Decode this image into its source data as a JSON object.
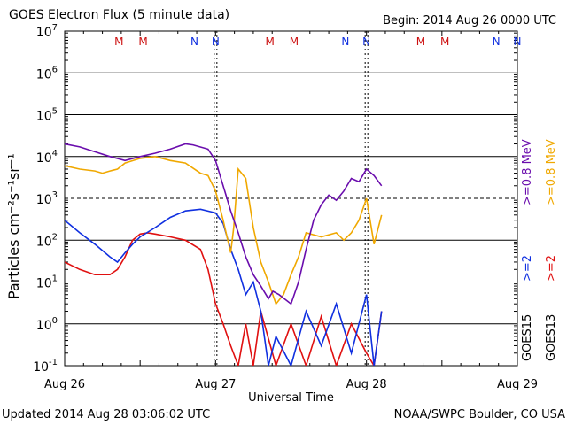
{
  "header": {
    "title": "GOES Electron Flux (5 minute data)",
    "begin": "Begin: 2014 Aug 26 0000 UTC"
  },
  "footer": {
    "updated": "Updated 2014 Aug 28 03:06:02 UTC",
    "credit": "NOAA/SWPC Boulder, CO USA"
  },
  "colors": {
    "goes15_08": "#6a0dad",
    "goes13_08": "#f0a800",
    "goes15_2": "#1030e0",
    "goes13_2": "#e01010",
    "m_marker": "#cc1010",
    "n_marker": "#1030e0"
  },
  "legend": {
    "goes15_08": ">=0.8 MeV",
    "goes13_08": ">=0.8 MeV",
    "goes15_2": ">=2",
    "goes13_2": ">=2",
    "goes15": "GOES15",
    "goes13": "GOES13"
  },
  "chart_data": {
    "type": "line",
    "title": "GOES Electron Flux (5 minute data)",
    "xlabel": "Universal Time",
    "ylabel": "Particles cm⁻²s⁻¹sr⁻¹",
    "xlim": [
      0,
      3
    ],
    "ylim_log10": [
      -1,
      7
    ],
    "x_ticks": [
      "Aug 26",
      "Aug 27",
      "Aug 28",
      "Aug 29"
    ],
    "y_ticks": [
      {
        "base": "10",
        "exp": "-1"
      },
      {
        "base": "10",
        "exp": "0"
      },
      {
        "base": "10",
        "exp": "1"
      },
      {
        "base": "10",
        "exp": "2"
      },
      {
        "base": "10",
        "exp": "3"
      },
      {
        "base": "10",
        "exp": "4"
      },
      {
        "base": "10",
        "exp": "5"
      },
      {
        "base": "10",
        "exp": "6"
      },
      {
        "base": "10",
        "exp": "7"
      }
    ],
    "alert_threshold": 1000,
    "day_markers": [
      {
        "day": 0,
        "labels": [
          "M",
          "M",
          "N",
          "N"
        ]
      },
      {
        "day": 1,
        "labels": [
          "M",
          "M",
          "N",
          "N"
        ]
      },
      {
        "day": 2,
        "labels": [
          "M",
          "M",
          "N",
          "N"
        ]
      }
    ],
    "marker_offsets_days": [
      0.36,
      0.52,
      0.86,
      1.0
    ],
    "series": [
      {
        "name": "GOES15 >=0.8 MeV",
        "x": [
          0,
          0.1,
          0.2,
          0.3,
          0.4,
          0.5,
          0.6,
          0.7,
          0.8,
          0.85,
          0.95,
          1.0,
          1.05,
          1.1,
          1.15,
          1.2,
          1.25,
          1.3,
          1.35,
          1.38,
          1.42,
          1.5,
          1.55,
          1.6,
          1.65,
          1.7,
          1.75,
          1.8,
          1.85,
          1.9,
          1.95,
          2.0,
          2.05,
          2.1
        ],
        "y": [
          20000,
          17000,
          13000,
          10000,
          8000,
          10000,
          12000,
          15000,
          20000,
          19000,
          15000,
          8000,
          2000,
          500,
          150,
          40,
          15,
          8,
          4,
          6,
          5,
          3,
          10,
          60,
          300,
          700,
          1200,
          900,
          1500,
          3000,
          2500,
          5000,
          3500,
          2000
        ]
      },
      {
        "name": "GOES13 >=0.8 MeV",
        "x": [
          0,
          0.1,
          0.2,
          0.25,
          0.3,
          0.35,
          0.4,
          0.5,
          0.6,
          0.7,
          0.8,
          0.9,
          0.95,
          1.0,
          1.05,
          1.1,
          1.12,
          1.15,
          1.2,
          1.25,
          1.3,
          1.35,
          1.4,
          1.45,
          1.5,
          1.55,
          1.6,
          1.7,
          1.8,
          1.85,
          1.9,
          1.95,
          2.0,
          2.05,
          2.1
        ],
        "y": [
          6000,
          5000,
          4500,
          4000,
          4500,
          5000,
          7000,
          9000,
          10000,
          8000,
          7000,
          4000,
          3500,
          1500,
          300,
          50,
          200,
          5000,
          3000,
          200,
          30,
          10,
          3,
          5,
          15,
          40,
          150,
          120,
          150,
          100,
          150,
          300,
          1000,
          80,
          400
        ]
      },
      {
        "name": "GOES15 >=2 MeV",
        "x": [
          0,
          0.1,
          0.2,
          0.3,
          0.35,
          0.4,
          0.45,
          0.5,
          0.6,
          0.7,
          0.8,
          0.9,
          1.0,
          1.05,
          1.1,
          1.15,
          1.2,
          1.25,
          1.3,
          1.35,
          1.4,
          1.5,
          1.6,
          1.7,
          1.8,
          1.9,
          2.0,
          2.05,
          2.1
        ],
        "y": [
          300,
          150,
          80,
          40,
          30,
          50,
          80,
          120,
          200,
          350,
          500,
          550,
          450,
          250,
          60,
          20,
          5,
          10,
          2,
          0.1,
          0.5,
          0.1,
          2,
          0.3,
          3,
          0.2,
          5,
          0.1,
          2
        ]
      },
      {
        "name": "GOES13 >=2 MeV",
        "x": [
          0,
          0.1,
          0.2,
          0.3,
          0.35,
          0.4,
          0.45,
          0.5,
          0.55,
          0.6,
          0.7,
          0.8,
          0.9,
          0.95,
          1.0,
          1.05,
          1.1,
          1.15,
          1.2,
          1.25,
          1.3,
          1.4,
          1.5,
          1.6,
          1.7,
          1.8,
          1.9,
          2.0,
          2.05,
          2.1
        ],
        "y": [
          30,
          20,
          15,
          15,
          20,
          40,
          100,
          140,
          150,
          140,
          120,
          100,
          60,
          20,
          3,
          1,
          0.3,
          0.1,
          1,
          0.1,
          2,
          0.1,
          1,
          0.1,
          1.5,
          0.1,
          1,
          0.2,
          0.1,
          2
        ]
      }
    ]
  }
}
